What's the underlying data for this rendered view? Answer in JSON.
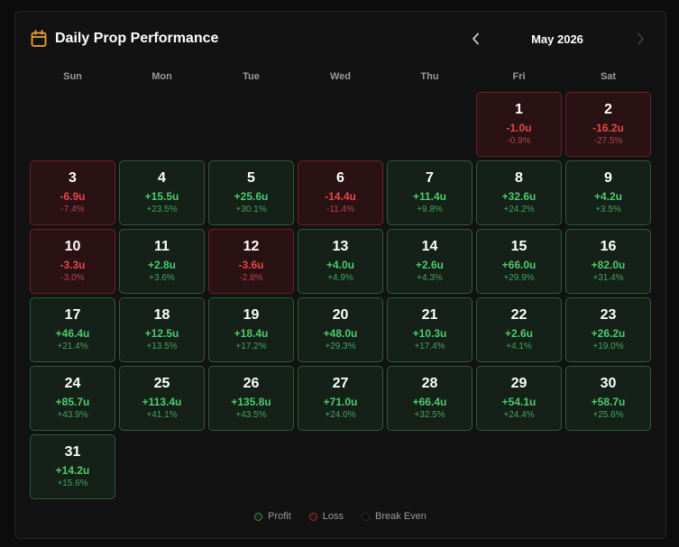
{
  "title": "Daily Prop Performance",
  "month": "May 2026",
  "icons": {
    "calendar": "calendar-icon",
    "prev": "chevron-left-icon",
    "next": "chevron-right-icon"
  },
  "colors": {
    "accent": "#f0a030",
    "profit": "#4ecb6e",
    "loss": "#e54848"
  },
  "weekdays": [
    "Sun",
    "Mon",
    "Tue",
    "Wed",
    "Thu",
    "Fri",
    "Sat"
  ],
  "start_offset": 5,
  "days": [
    {
      "day": "1",
      "units": "-1.0u",
      "pct": "-0.9%",
      "status": "loss"
    },
    {
      "day": "2",
      "units": "-16.2u",
      "pct": "-27.5%",
      "status": "loss"
    },
    {
      "day": "3",
      "units": "-6.9u",
      "pct": "-7.4%",
      "status": "loss"
    },
    {
      "day": "4",
      "units": "+15.5u",
      "pct": "+23.5%",
      "status": "profit"
    },
    {
      "day": "5",
      "units": "+25.6u",
      "pct": "+30.1%",
      "status": "profit"
    },
    {
      "day": "6",
      "units": "-14.4u",
      "pct": "-11.4%",
      "status": "loss"
    },
    {
      "day": "7",
      "units": "+11.4u",
      "pct": "+9.8%",
      "status": "profit"
    },
    {
      "day": "8",
      "units": "+32.6u",
      "pct": "+24.2%",
      "status": "profit"
    },
    {
      "day": "9",
      "units": "+4.2u",
      "pct": "+3.5%",
      "status": "profit"
    },
    {
      "day": "10",
      "units": "-3.3u",
      "pct": "-3.0%",
      "status": "loss"
    },
    {
      "day": "11",
      "units": "+2.8u",
      "pct": "+3.6%",
      "status": "profit"
    },
    {
      "day": "12",
      "units": "-3.6u",
      "pct": "-2.8%",
      "status": "loss"
    },
    {
      "day": "13",
      "units": "+4.0u",
      "pct": "+4.9%",
      "status": "profit"
    },
    {
      "day": "14",
      "units": "+2.6u",
      "pct": "+4.3%",
      "status": "profit"
    },
    {
      "day": "15",
      "units": "+66.0u",
      "pct": "+29.9%",
      "status": "profit"
    },
    {
      "day": "16",
      "units": "+82.0u",
      "pct": "+31.4%",
      "status": "profit"
    },
    {
      "day": "17",
      "units": "+46.4u",
      "pct": "+21.4%",
      "status": "profit"
    },
    {
      "day": "18",
      "units": "+12.5u",
      "pct": "+13.5%",
      "status": "profit"
    },
    {
      "day": "19",
      "units": "+18.4u",
      "pct": "+17.2%",
      "status": "profit"
    },
    {
      "day": "20",
      "units": "+48.0u",
      "pct": "+29.3%",
      "status": "profit"
    },
    {
      "day": "21",
      "units": "+10.3u",
      "pct": "+17.4%",
      "status": "profit"
    },
    {
      "day": "22",
      "units": "+2.6u",
      "pct": "+4.1%",
      "status": "profit"
    },
    {
      "day": "23",
      "units": "+26.2u",
      "pct": "+19.0%",
      "status": "profit"
    },
    {
      "day": "24",
      "units": "+85.7u",
      "pct": "+43.9%",
      "status": "profit"
    },
    {
      "day": "25",
      "units": "+113.4u",
      "pct": "+41.1%",
      "status": "profit"
    },
    {
      "day": "26",
      "units": "+135.8u",
      "pct": "+43.5%",
      "status": "profit"
    },
    {
      "day": "27",
      "units": "+71.0u",
      "pct": "+24.0%",
      "status": "profit"
    },
    {
      "day": "28",
      "units": "+66.4u",
      "pct": "+32.5%",
      "status": "profit"
    },
    {
      "day": "29",
      "units": "+54.1u",
      "pct": "+24.4%",
      "status": "profit"
    },
    {
      "day": "30",
      "units": "+58.7u",
      "pct": "+25.6%",
      "status": "profit"
    },
    {
      "day": "31",
      "units": "+14.2u",
      "pct": "+15.6%",
      "status": "profit"
    }
  ],
  "legend": [
    {
      "label": "Profit",
      "key": "profit"
    },
    {
      "label": "Loss",
      "key": "loss"
    },
    {
      "label": "Break Even",
      "key": "even"
    }
  ]
}
